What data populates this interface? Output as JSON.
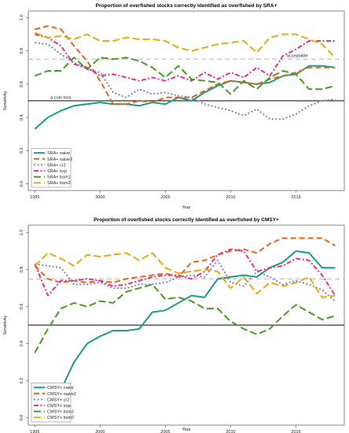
{
  "chart_data": [
    {
      "type": "line",
      "title": "Proportion of overfished stocks correctly identified as overfished by SRA+",
      "xlabel": "Year",
      "ylabel": "Sensitivity",
      "xlim": [
        1994.5,
        2018.7
      ],
      "ylim": [
        -0.04,
        1.04
      ],
      "xticks": [
        "1995",
        "2000",
        "2005",
        "2010",
        "2015"
      ],
      "yticks": [
        "0.0",
        "0.2",
        "0.4",
        "0.6",
        "0.8",
        "1.0"
      ],
      "grid": false,
      "legend_position": "bottom-left",
      "reference_lines": [
        {
          "y": 0.5,
          "label": "a coin toss",
          "label_x": 1996.2,
          "color": "#000000",
          "dashed": false
        },
        {
          "y": 0.75,
          "label": "acceptable",
          "label_x": 2014.3,
          "color": "#bbbbbb",
          "dashed": true
        }
      ],
      "x": [
        1995,
        1996,
        1997,
        1998,
        1999,
        2000,
        2001,
        2002,
        2003,
        2004,
        2005,
        2006,
        2007,
        2008,
        2009,
        2010,
        2011,
        2012,
        2013,
        2014,
        2015,
        2016,
        2017,
        2018
      ],
      "series": [
        {
          "name": "SRA+ naive",
          "color": "#16a085",
          "width": 2.0,
          "dash": "",
          "values": [
            0.33,
            0.4,
            0.44,
            0.47,
            0.48,
            0.49,
            0.48,
            0.48,
            0.47,
            0.49,
            0.48,
            0.52,
            0.5,
            0.55,
            0.59,
            0.62,
            0.61,
            0.6,
            0.61,
            0.65,
            0.66,
            0.71,
            0.71,
            0.7
          ]
        },
        {
          "name": "SRA+ naive2",
          "color": "#e8641a",
          "width": 2.0,
          "dash": "7,4",
          "values": [
            0.93,
            0.95,
            0.93,
            0.83,
            0.74,
            0.62,
            0.48,
            0.48,
            0.5,
            0.49,
            0.52,
            0.52,
            0.52,
            0.56,
            0.6,
            0.62,
            0.61,
            0.6,
            0.63,
            0.65,
            0.67,
            0.7,
            0.7,
            0.7
          ]
        },
        {
          "name": "SRA+ cr2",
          "color": "#8a7fc8",
          "width": 2.0,
          "dash": "2,2.5",
          "values": [
            0.85,
            0.84,
            0.78,
            0.73,
            0.69,
            0.67,
            0.55,
            0.52,
            0.57,
            0.54,
            0.55,
            0.53,
            0.52,
            0.48,
            0.46,
            0.44,
            0.41,
            0.45,
            0.39,
            0.39,
            0.42,
            0.47,
            0.5,
            0.51
          ]
        },
        {
          "name": "SRA+ exp",
          "color": "#e8318a",
          "width": 2.0,
          "dash": "6,2.5,2,2.5",
          "values": [
            0.9,
            0.88,
            0.83,
            0.72,
            0.7,
            0.65,
            0.66,
            0.64,
            0.62,
            0.64,
            0.62,
            0.65,
            0.62,
            0.67,
            0.63,
            0.67,
            0.64,
            0.7,
            0.65,
            0.77,
            0.81,
            0.86,
            0.86,
            0.86
          ]
        },
        {
          "name": "SRA+ bsm1",
          "color": "#4a9a24",
          "width": 2.0,
          "dash": "9,4",
          "values": [
            0.65,
            0.68,
            0.68,
            0.76,
            0.69,
            0.76,
            0.75,
            0.76,
            0.74,
            0.7,
            0.64,
            0.71,
            0.63,
            0.62,
            0.61,
            0.54,
            0.62,
            0.57,
            0.64,
            0.68,
            0.66,
            0.57,
            0.57,
            0.59
          ]
        },
        {
          "name": "SRA+ bsm2",
          "color": "#e8aa0e",
          "width": 2.0,
          "dash": "9,4",
          "values": [
            0.91,
            0.88,
            0.89,
            0.87,
            0.9,
            0.86,
            0.86,
            0.88,
            0.87,
            0.87,
            0.86,
            0.82,
            0.8,
            0.82,
            0.84,
            0.85,
            0.86,
            0.79,
            0.88,
            0.9,
            0.9,
            0.87,
            0.84,
            0.76
          ]
        }
      ]
    },
    {
      "type": "line",
      "title": "Proportion of overfished stocks correctly identified as overfished by CMSY+",
      "xlabel": "Year",
      "ylabel": "Sensitivity",
      "xlim": [
        1994.5,
        2018.7
      ],
      "ylim": [
        -0.04,
        1.04
      ],
      "xticks": [
        "1995",
        "2000",
        "2005",
        "2010",
        "2015"
      ],
      "yticks": [
        "0.0",
        "0.2",
        "0.4",
        "0.6",
        "0.8",
        "1.0"
      ],
      "grid": false,
      "legend_position": "bottom-left",
      "reference_lines": [
        {
          "y": 0.5,
          "label": "",
          "label_x": 0,
          "color": "#000000",
          "dashed": false
        },
        {
          "y": 0.75,
          "label": "",
          "label_x": 0,
          "color": "#bbbbbb",
          "dashed": true
        }
      ],
      "x": [
        1995,
        1996,
        1997,
        1998,
        1999,
        2000,
        2001,
        2002,
        2003,
        2004,
        2005,
        2006,
        2007,
        2008,
        2009,
        2010,
        2011,
        2012,
        2013,
        2014,
        2015,
        2016,
        2017,
        2018
      ],
      "series": [
        {
          "name": "CMSY+ naive",
          "color": "#16a085",
          "width": 2.0,
          "dash": "",
          "values": [
            0.0,
            0.05,
            0.15,
            0.3,
            0.4,
            0.44,
            0.47,
            0.47,
            0.48,
            0.57,
            0.58,
            0.62,
            0.66,
            0.65,
            0.75,
            0.76,
            0.77,
            0.76,
            0.81,
            0.84,
            0.9,
            0.89,
            0.81,
            0.81
          ]
        },
        {
          "name": "CMSY+ naive2",
          "color": "#e8641a",
          "width": 2.0,
          "dash": "7,4",
          "values": [
            0.82,
            0.75,
            0.73,
            0.74,
            0.73,
            0.74,
            0.73,
            0.75,
            0.76,
            0.77,
            0.78,
            0.76,
            0.84,
            0.85,
            0.88,
            0.9,
            0.91,
            0.89,
            0.94,
            0.97,
            0.97,
            0.97,
            0.97,
            0.93
          ]
        },
        {
          "name": "CMSY+ cr2",
          "color": "#8a7fc8",
          "width": 2.0,
          "dash": "2,2.5",
          "values": [
            0.83,
            0.82,
            0.81,
            0.72,
            0.72,
            0.73,
            0.7,
            0.7,
            0.72,
            0.72,
            0.73,
            0.76,
            0.77,
            0.76,
            0.85,
            0.73,
            0.71,
            0.79,
            0.76,
            0.72,
            0.74,
            0.72,
            0.69,
            0.63
          ]
        },
        {
          "name": "CMSY+ exp",
          "color": "#e8318a",
          "width": 2.0,
          "dash": "6,2.5,2,2.5",
          "values": [
            0.83,
            0.66,
            0.74,
            0.74,
            0.75,
            0.74,
            0.71,
            0.72,
            0.74,
            0.76,
            0.77,
            0.77,
            0.75,
            0.79,
            0.88,
            0.91,
            0.9,
            0.79,
            0.81,
            0.82,
            0.86,
            0.85,
            0.77,
            0.66
          ]
        },
        {
          "name": "CMSY+ bsm1",
          "color": "#4a9a24",
          "width": 2.0,
          "dash": "9,4",
          "values": [
            0.35,
            0.48,
            0.59,
            0.62,
            0.6,
            0.63,
            0.62,
            0.68,
            0.7,
            0.72,
            0.64,
            0.65,
            0.63,
            0.59,
            0.59,
            0.52,
            0.48,
            0.45,
            0.48,
            0.55,
            0.61,
            0.57,
            0.53,
            0.55
          ]
        },
        {
          "name": "CMSY+ bsm2",
          "color": "#e8aa0e",
          "width": 2.0,
          "dash": "9,4",
          "values": [
            0.82,
            0.89,
            0.86,
            0.82,
            0.88,
            0.87,
            0.88,
            0.89,
            0.85,
            0.89,
            0.81,
            0.78,
            0.79,
            0.8,
            0.79,
            0.7,
            0.76,
            0.67,
            0.73,
            0.71,
            0.73,
            0.76,
            0.65,
            0.66
          ]
        }
      ]
    }
  ]
}
